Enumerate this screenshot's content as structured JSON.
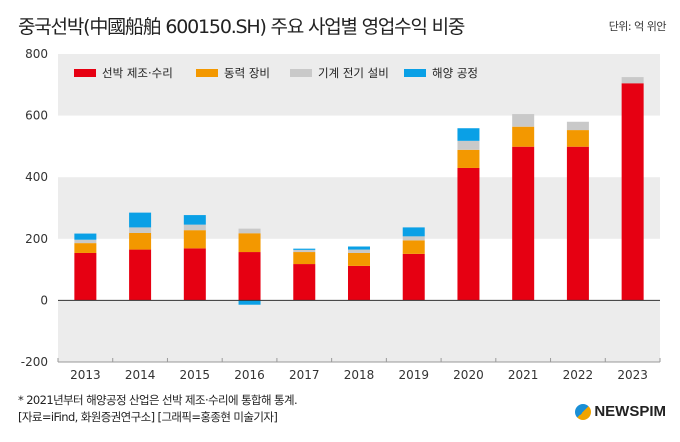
{
  "title": "중국선박(中國船舶 600150.SH) 주요 사업별 영업수익 비중",
  "unit_label": "단위: 억 위안",
  "footnote": "* 2021년부터 해양공정 산업은 선박 제조·수리에 통합해 통계.",
  "source": "[자료=iFind, 화원증권연구소] [그래픽=홍종현 미술기자]",
  "logo_text": "NEWSPIM",
  "chart_data": {
    "type": "bar",
    "stacked": true,
    "categories": [
      "2013",
      "2014",
      "2015",
      "2016",
      "2017",
      "2018",
      "2019",
      "2020",
      "2021",
      "2022",
      "2023"
    ],
    "series": [
      {
        "name": "선박 제조·수리",
        "color": "#e60012",
        "values": [
          154,
          165,
          169,
          157,
          118,
          112,
          151,
          430,
          499,
          499,
          705
        ]
      },
      {
        "name": "동력 장비",
        "color": "#f39800",
        "values": [
          32,
          54,
          59,
          61,
          39,
          42,
          44,
          59,
          65,
          54,
          0
        ]
      },
      {
        "name": "기계 전기 설비",
        "color": "#c9c9c9",
        "values": [
          11,
          18,
          18,
          15,
          7,
          11,
          13,
          29,
          41,
          27,
          20
        ]
      },
      {
        "name": "해양 공정",
        "color": "#0aa0e6",
        "values": [
          20,
          48,
          31,
          -14,
          4,
          10,
          29,
          41,
          0,
          0,
          0
        ]
      }
    ],
    "ylim": [
      -200,
      800
    ],
    "yticks": [
      -200,
      0,
      200,
      400,
      600,
      800
    ],
    "legend": "top-left",
    "grid": "alternating bands"
  }
}
